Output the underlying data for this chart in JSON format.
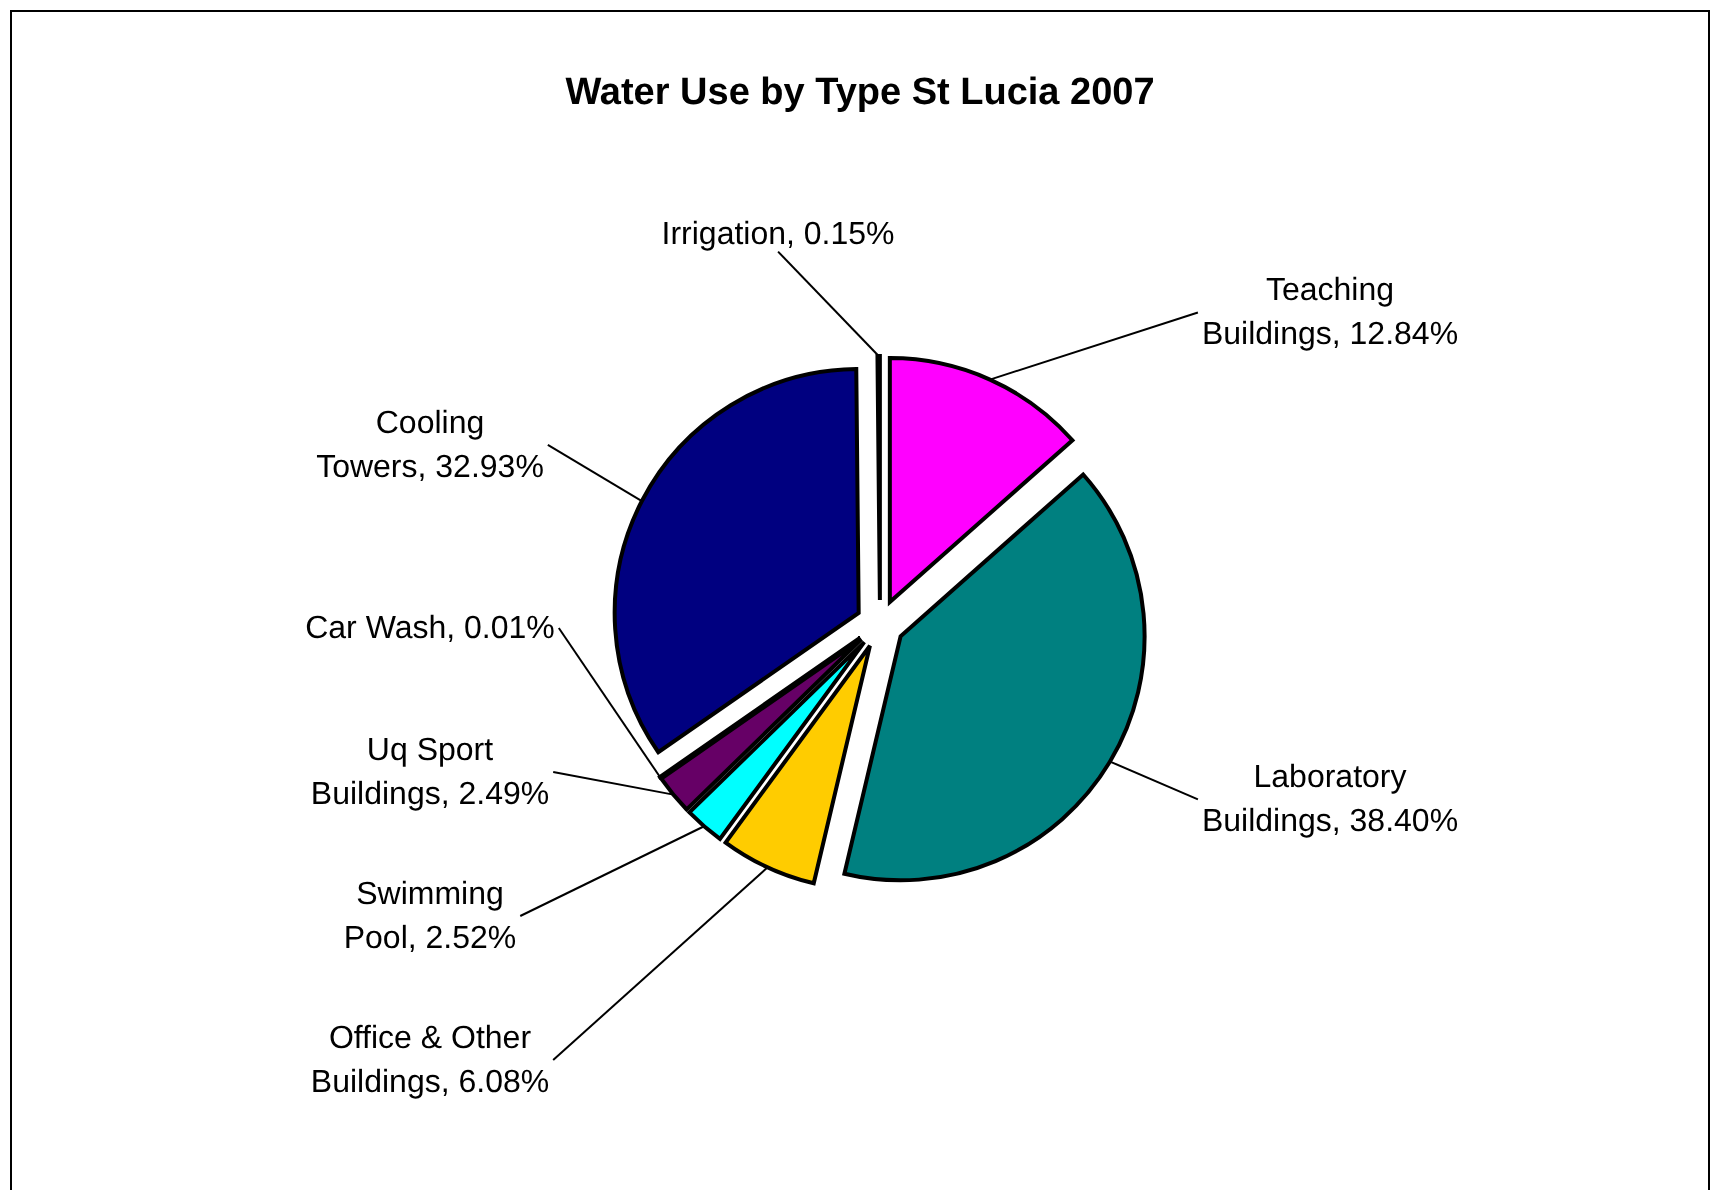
{
  "chart_data": {
    "type": "pie",
    "title": "Water Use by Type St Lucia 2007",
    "categories": [
      "Teaching Buildings",
      "Laboratory Buildings",
      "Office & Other Buildings",
      "Swimming Pool",
      "Uq Sport Buildings",
      "Car Wash",
      "Cooling Towers",
      "Irrigation"
    ],
    "values": [
      12.84,
      38.4,
      6.08,
      2.52,
      2.49,
      0.01,
      32.93,
      0.15
    ],
    "value_labels": [
      "12.84%",
      "38.40%",
      "6.08%",
      "2.52%",
      "2.49%",
      "0.01%",
      "32.93%",
      "0.15%"
    ],
    "colors": [
      "#ff00ff",
      "#008080",
      "#ffcc00",
      "#00ffff",
      "#660066",
      "#ffffcc",
      "#000080",
      "#ffffff"
    ]
  }
}
